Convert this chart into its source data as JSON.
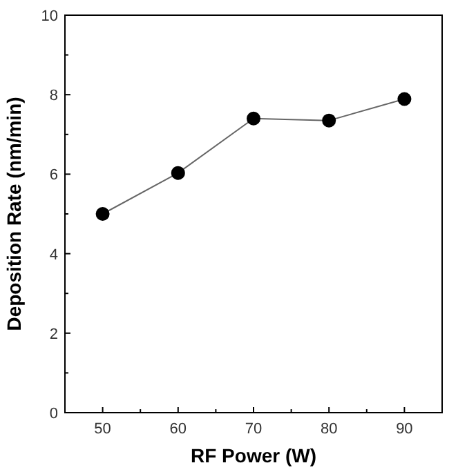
{
  "chart_data": {
    "type": "line",
    "xlabel": "RF Power (W)",
    "ylabel": "Deposition Rate (nm/min)",
    "x": [
      50,
      60,
      70,
      80,
      90
    ],
    "series": [
      {
        "color": "#000000",
        "values": [
          5.0,
          6.03,
          7.4,
          7.35,
          7.89
        ]
      }
    ],
    "xlim": [
      45,
      95
    ],
    "xticks": [
      50,
      {
        "value": 55,
        "label": null
      },
      60,
      {
        "value": 65,
        "label": null
      },
      70,
      {
        "value": 75,
        "label": null
      },
      80,
      {
        "value": 85,
        "label": null
      },
      90
    ],
    "ylim": [
      0,
      10
    ],
    "yticks": [
      0,
      {
        "value": 1,
        "label": null
      },
      2,
      {
        "value": 3,
        "label": null
      },
      4,
      {
        "value": 5,
        "label": null
      },
      6,
      {
        "value": 7,
        "label": null
      },
      8,
      {
        "value": 9,
        "label": null
      },
      10
    ],
    "marker": "circle",
    "grid": false
  }
}
